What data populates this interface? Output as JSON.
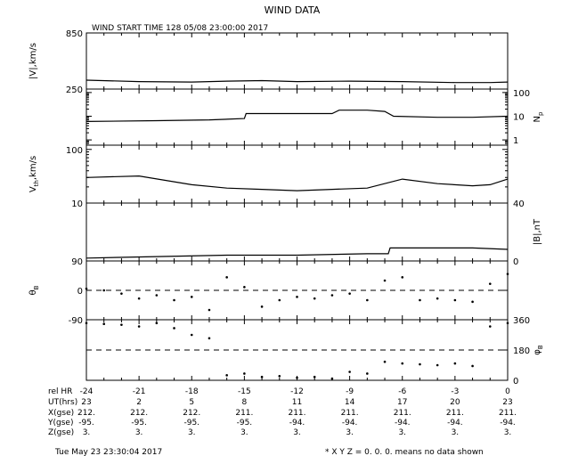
{
  "title": "WIND DATA",
  "subtitle": "WIND START TIME 128 05/08 23:00:00 2017",
  "footer": {
    "timestamp": "Tue May 23 23:30:04 2017",
    "note": "* X Y Z = 0. 0. 0. means no data shown"
  },
  "time_axis": {
    "row_labels": [
      "rel HR",
      "UT(hrs)",
      "X(gse)",
      "Y(gse)",
      "Z(gse)"
    ],
    "rel_hr": [
      "-24",
      "-21",
      "-18",
      "-15",
      "-12",
      "-9",
      "-6",
      "-3",
      "0"
    ],
    "ut_hrs": [
      "23",
      "2",
      "5",
      "8",
      "11",
      "14",
      "17",
      "20",
      "23"
    ],
    "x_gse": [
      "212.",
      "212.",
      "212.",
      "211.",
      "211.",
      "211.",
      "211.",
      "211.",
      "211."
    ],
    "y_gse": [
      "-95.",
      "-95.",
      "-95.",
      "-95.",
      "-94.",
      "-94.",
      "-94.",
      "-94.",
      "-94."
    ],
    "z_gse": [
      "3.",
      "3.",
      "3.",
      "3.",
      "3.",
      "3.",
      "3.",
      "3.",
      "3."
    ]
  },
  "chart_data": [
    {
      "type": "line",
      "panel": "speed",
      "ylabel": "|V|,km/s",
      "yticks": [
        "850",
        "250"
      ],
      "ylim": [
        250,
        850
      ],
      "x": [
        -24,
        -21,
        -18,
        -16,
        -14,
        -12,
        -9,
        -6,
        -3,
        -1,
        0
      ],
      "values": [
        345,
        330,
        325,
        335,
        340,
        330,
        335,
        330,
        320,
        320,
        325
      ]
    },
    {
      "type": "line",
      "panel": "density",
      "ylabel": "N",
      "ylabel_sub": "p",
      "yticks": [
        "100",
        "10",
        "1"
      ],
      "scale": "log",
      "ylim": [
        0.6,
        140
      ],
      "x": [
        -24,
        -20,
        -17,
        -15,
        -14.9,
        -10,
        -9.6,
        -8,
        -7,
        -6.5,
        -4,
        -2,
        0
      ],
      "values": [
        6,
        6.5,
        7,
        8,
        13,
        13,
        18,
        18,
        16,
        10,
        9,
        9,
        10
      ]
    },
    {
      "type": "line",
      "panel": "thermal_speed",
      "ylabel": "V",
      "ylabel_sub": "th",
      "ylabel_suffix": ",km/s",
      "yticks": [
        "100",
        "10"
      ],
      "scale": "log",
      "ylim": [
        10,
        120
      ],
      "x": [
        -24,
        -21,
        -18,
        -16,
        -14,
        -12,
        -10,
        -8,
        -6,
        -4,
        -2,
        -1,
        0
      ],
      "values": [
        30,
        32,
        22,
        19,
        18,
        17,
        18,
        19,
        28,
        23,
        21,
        22,
        28
      ]
    },
    {
      "type": "line",
      "panel": "field_magnitude",
      "ylabel": "|B|,nT",
      "yticks": [
        "40",
        "0"
      ],
      "ylim": [
        0,
        40
      ],
      "x": [
        -24,
        -20,
        -16,
        -12,
        -8,
        -6.8,
        -6.7,
        -4,
        -2,
        0
      ],
      "values": [
        2,
        3,
        4,
        4,
        5,
        5,
        9,
        9,
        9,
        8
      ]
    },
    {
      "type": "scatter",
      "panel": "theta",
      "ylabel": "θ",
      "ylabel_sub": "B",
      "yticks": [
        "90",
        "0",
        "-90"
      ],
      "ylim": [
        -90,
        90
      ],
      "reference_line": 0,
      "x": [
        -24,
        -23,
        -22,
        -21,
        -20,
        -19,
        -18,
        -17,
        -16,
        -15,
        -14,
        -13,
        -12,
        -11,
        -10,
        -9,
        -8,
        -7,
        -6,
        -5,
        -4,
        -3,
        -2,
        -1,
        0
      ],
      "values": [
        5,
        0,
        -10,
        -25,
        -15,
        -30,
        -20,
        -60,
        40,
        10,
        -50,
        -30,
        -20,
        -25,
        -15,
        -10,
        -30,
        30,
        40,
        -30,
        -25,
        -30,
        -35,
        20,
        50
      ]
    },
    {
      "type": "scatter",
      "panel": "phi",
      "ylabel": "φ",
      "ylabel_sub": "B",
      "yticks": [
        "360",
        "180",
        "0"
      ],
      "ylim": [
        0,
        360
      ],
      "reference_line": 180,
      "x": [
        -24,
        -23,
        -22,
        -21,
        -20,
        -19,
        -18,
        -17,
        -16,
        -15,
        -14,
        -13,
        -12,
        -11,
        -10,
        -9,
        -8,
        -7,
        -6,
        -5,
        -4,
        -3,
        -2,
        -1,
        0
      ],
      "values": [
        340,
        335,
        330,
        320,
        340,
        310,
        270,
        250,
        30,
        40,
        20,
        25,
        15,
        20,
        10,
        50,
        40,
        110,
        100,
        95,
        90,
        100,
        85,
        320,
        340
      ]
    }
  ]
}
